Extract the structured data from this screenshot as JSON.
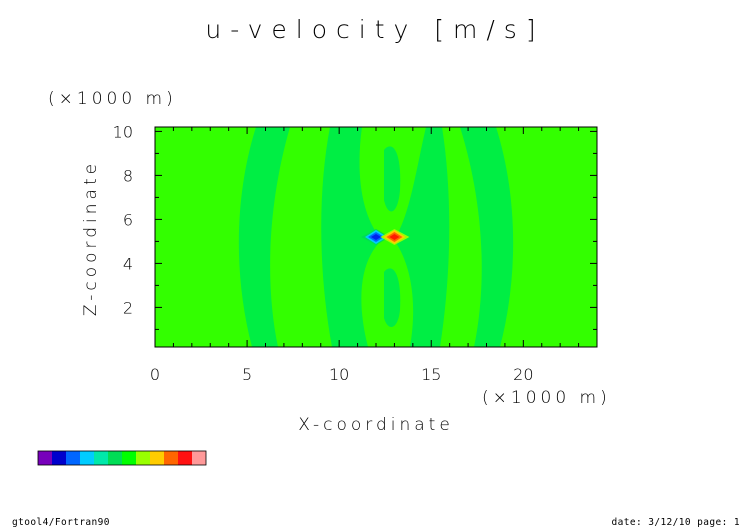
{
  "chart_data": {
    "type": "heatmap",
    "title": "u-velocity [m/s]",
    "xlabel": "X-coordinate",
    "ylabel": "Z-coordinate",
    "x_unit": "(×1000 m)",
    "y_unit": "(×1000 m)",
    "xlim": [
      0,
      24
    ],
    "ylim": [
      0.2,
      10.2
    ],
    "x_ticks": [
      0,
      5,
      10,
      15,
      20
    ],
    "y_ticks": [
      2,
      4,
      6,
      8,
      10
    ],
    "grid": false,
    "background_level_color": "#33ff00",
    "regions": [
      {
        "kind": "band",
        "x_center": 6.5,
        "color": "#00f040"
      },
      {
        "kind": "band",
        "x_center": 10.5,
        "color": "#00f040"
      },
      {
        "kind": "band",
        "x_center": 14.5,
        "color": "#00f040"
      },
      {
        "kind": "band",
        "x_center": 18.5,
        "color": "#00f040"
      },
      {
        "kind": "extremum",
        "x": 12.0,
        "y": 5.2,
        "sign": "negative",
        "color": "#0022ee"
      },
      {
        "kind": "extremum",
        "x": 13.0,
        "y": 5.2,
        "sign": "positive",
        "color": "#ff1a00"
      }
    ],
    "colorbar_colors": [
      "#7700bb",
      "#0000cc",
      "#0066ff",
      "#00ccff",
      "#00e8aa",
      "#00dd55",
      "#00ff00",
      "#99ff00",
      "#ffcc00",
      "#ff6600",
      "#ff1111",
      "#ff9999"
    ]
  },
  "footer": {
    "left": "gtool4/Fortran90",
    "right": "date: 3/12/10 page: 1"
  }
}
